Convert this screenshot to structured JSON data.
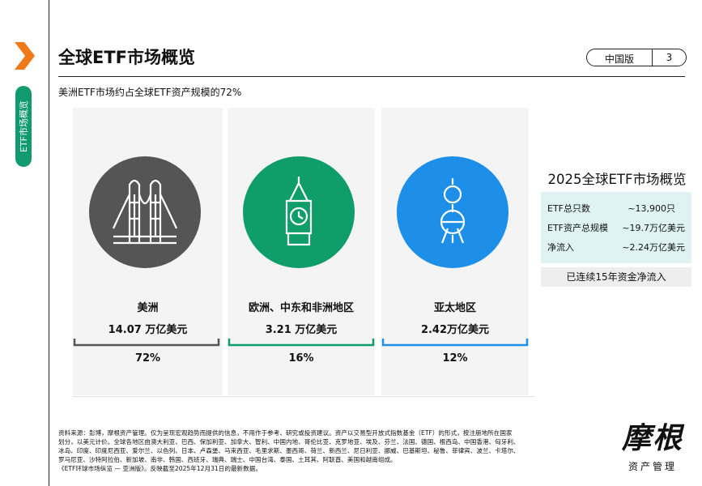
{
  "tab": "ETF市场概览",
  "header": {
    "title": "全球ETF市场概览",
    "edition": "中国版",
    "page": "3"
  },
  "subtitle": "美洲ETF市场约占全球ETF资产规模的72%",
  "regions": [
    {
      "name": "美洲",
      "value": "14.07 万亿美元",
      "share": "72%"
    },
    {
      "name": "欧洲、中东和非洲地区",
      "value": "3.21 万亿美元",
      "share": "16%"
    },
    {
      "name": "亚太地区",
      "value": "2.42万亿美元",
      "share": "12%"
    }
  ],
  "summary": {
    "title": "2025全球ETF市场概览",
    "rows": [
      [
        "ETF总只数",
        "~13,900只"
      ],
      [
        "ETF资产总规模",
        "~19.7万亿美元"
      ],
      [
        "净流入",
        "~2.24万亿美元"
      ]
    ],
    "note": "已连续15年资金净流入"
  },
  "footnote": [
    "资料来源：彭博，摩根资产管理。仅为呈现宏观趋势而提供的信息，不用作于参考、研究或投资建议。资产以交易型开放式指数基金（ETF）的形式，按注册地所在国家",
    "划分，以美元计价。全球各地区由澳大利亚、巴西、保加利亚、加拿大、智利、中国内地、哥伦比亚、克罗地亚、埃及、芬兰、法国、德国、根西岛、中国香港、匈牙利、",
    "冰岛、印度、印度尼西亚、爱尔兰、以色列、日本、卢森堡、马来西亚、毛里求斯、墨西哥、荷兰、新西兰、尼日利亚、挪威、巴基斯坦、秘鲁、菲律宾、波兰、卡塔尔、",
    "罗马尼亚、沙特阿拉伯、新加坡、南非、韩国、西班牙、瑞典、瑞士、中国台湾、泰国、土耳其、阿联酋、美国和越南组成。",
    "《ETF环球市场纵览 — 亚洲版》。反映截至2025年12月31日的最新数据。"
  ],
  "logo": {
    "name": "摩根",
    "sub": "资产管理"
  }
}
